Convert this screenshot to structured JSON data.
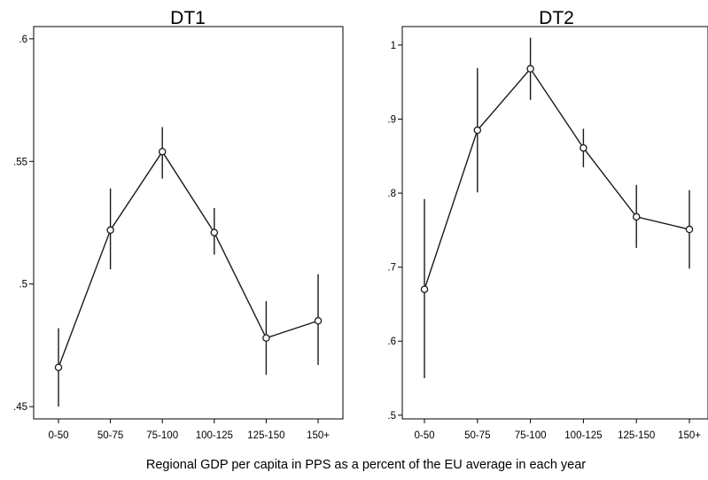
{
  "chart_data": [
    {
      "type": "line",
      "title": "DT1",
      "categories": [
        "0-50",
        "50-75",
        "75-100",
        "100-125",
        "125-150",
        "150+"
      ],
      "values": [
        0.466,
        0.522,
        0.554,
        0.521,
        0.478,
        0.485
      ],
      "ci_low": [
        0.45,
        0.506,
        0.543,
        0.512,
        0.463,
        0.467
      ],
      "ci_high": [
        0.482,
        0.539,
        0.564,
        0.531,
        0.493,
        0.504
      ],
      "ylim": [
        0.445,
        0.605
      ],
      "yticks": [
        0.45,
        0.5,
        0.55,
        0.6
      ],
      "ytick_labels": [
        ".45",
        ".5",
        ".55",
        ".6"
      ],
      "grid": false,
      "marker": "hollow-circle",
      "error_bars": true
    },
    {
      "type": "line",
      "title": "DT2",
      "categories": [
        "0-50",
        "50-75",
        "75-100",
        "100-125",
        "125-150",
        "150+"
      ],
      "values": [
        0.67,
        0.885,
        0.968,
        0.861,
        0.768,
        0.751
      ],
      "ci_low": [
        0.55,
        0.801,
        0.926,
        0.835,
        0.726,
        0.698
      ],
      "ci_high": [
        0.792,
        0.969,
        1.01,
        0.887,
        0.811,
        0.804
      ],
      "ylim": [
        0.495,
        1.025
      ],
      "yticks": [
        0.5,
        0.6,
        0.7,
        0.8,
        0.9,
        1.0
      ],
      "ytick_labels": [
        ".5",
        ".6",
        ".7",
        ".8",
        ".9",
        "1"
      ],
      "grid": false,
      "marker": "hollow-circle",
      "error_bars": true
    }
  ],
  "shared_xlabel": "Regional GDP per capita in PPS as a percent of the EU average in each year",
  "colors": {
    "line": "#1a1a1a",
    "frame": "#000000",
    "background": "#ffffff"
  }
}
